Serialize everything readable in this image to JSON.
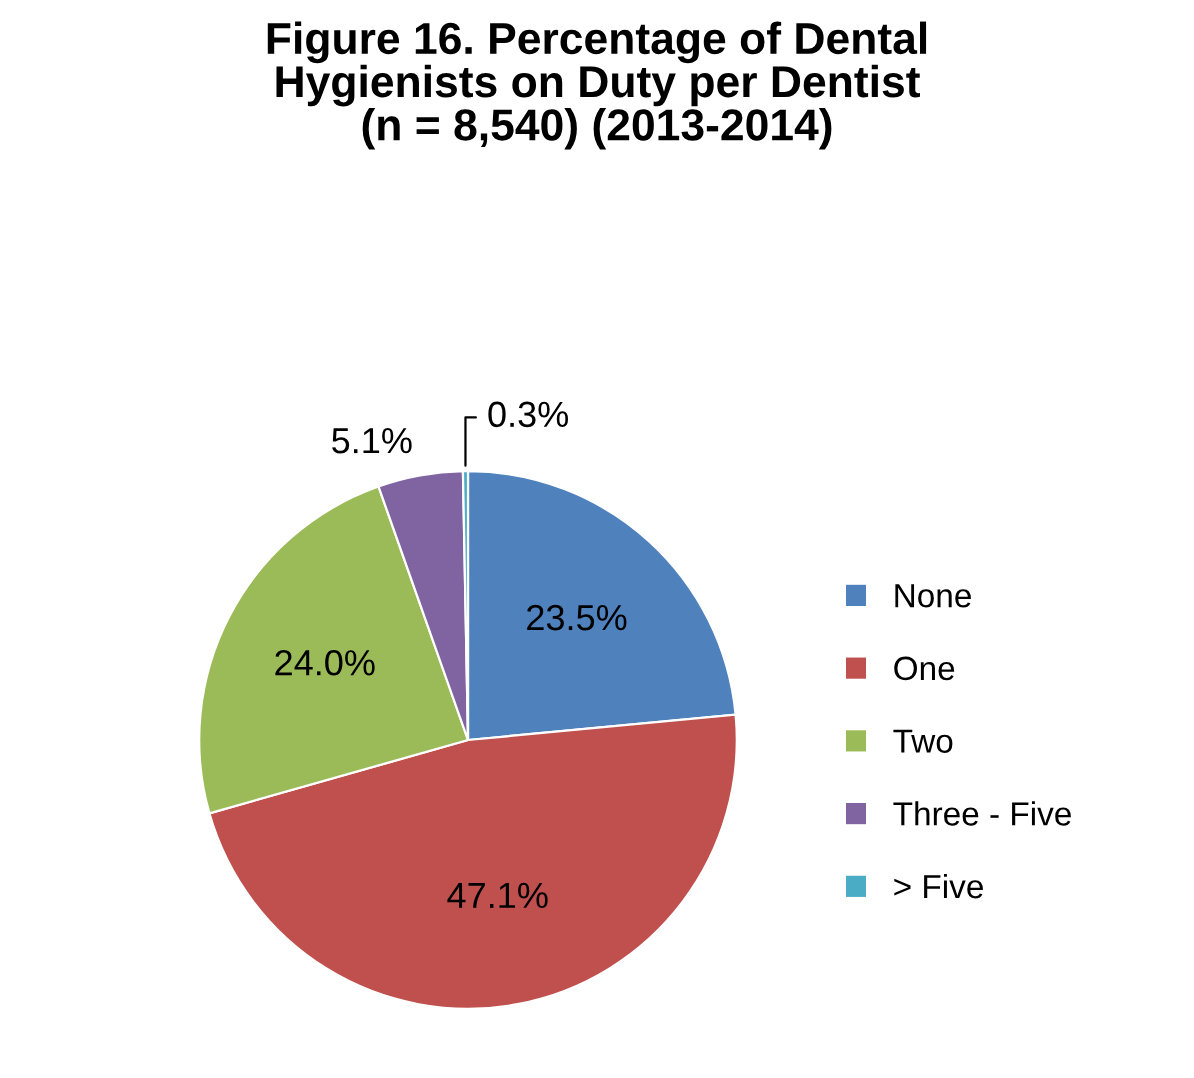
{
  "chart_data": {
    "type": "pie",
    "title": "Figure 16. Percentage of Dental\nHygienists on Duty per Dentist\n(n = 8,540) (2013-2014)",
    "categories": [
      "None",
      "One",
      "Two",
      "Three - Five",
      "> Five"
    ],
    "values": [
      23.5,
      47.1,
      24.0,
      5.1,
      0.3
    ],
    "value_labels": [
      "23.5%",
      "47.1%",
      "24.0%",
      "5.1%",
      "0.3%"
    ],
    "colors": [
      "#4f81bd",
      "#c0504d",
      "#9bbb59",
      "#8064a2",
      "#4bacc6"
    ],
    "legend": "right"
  }
}
